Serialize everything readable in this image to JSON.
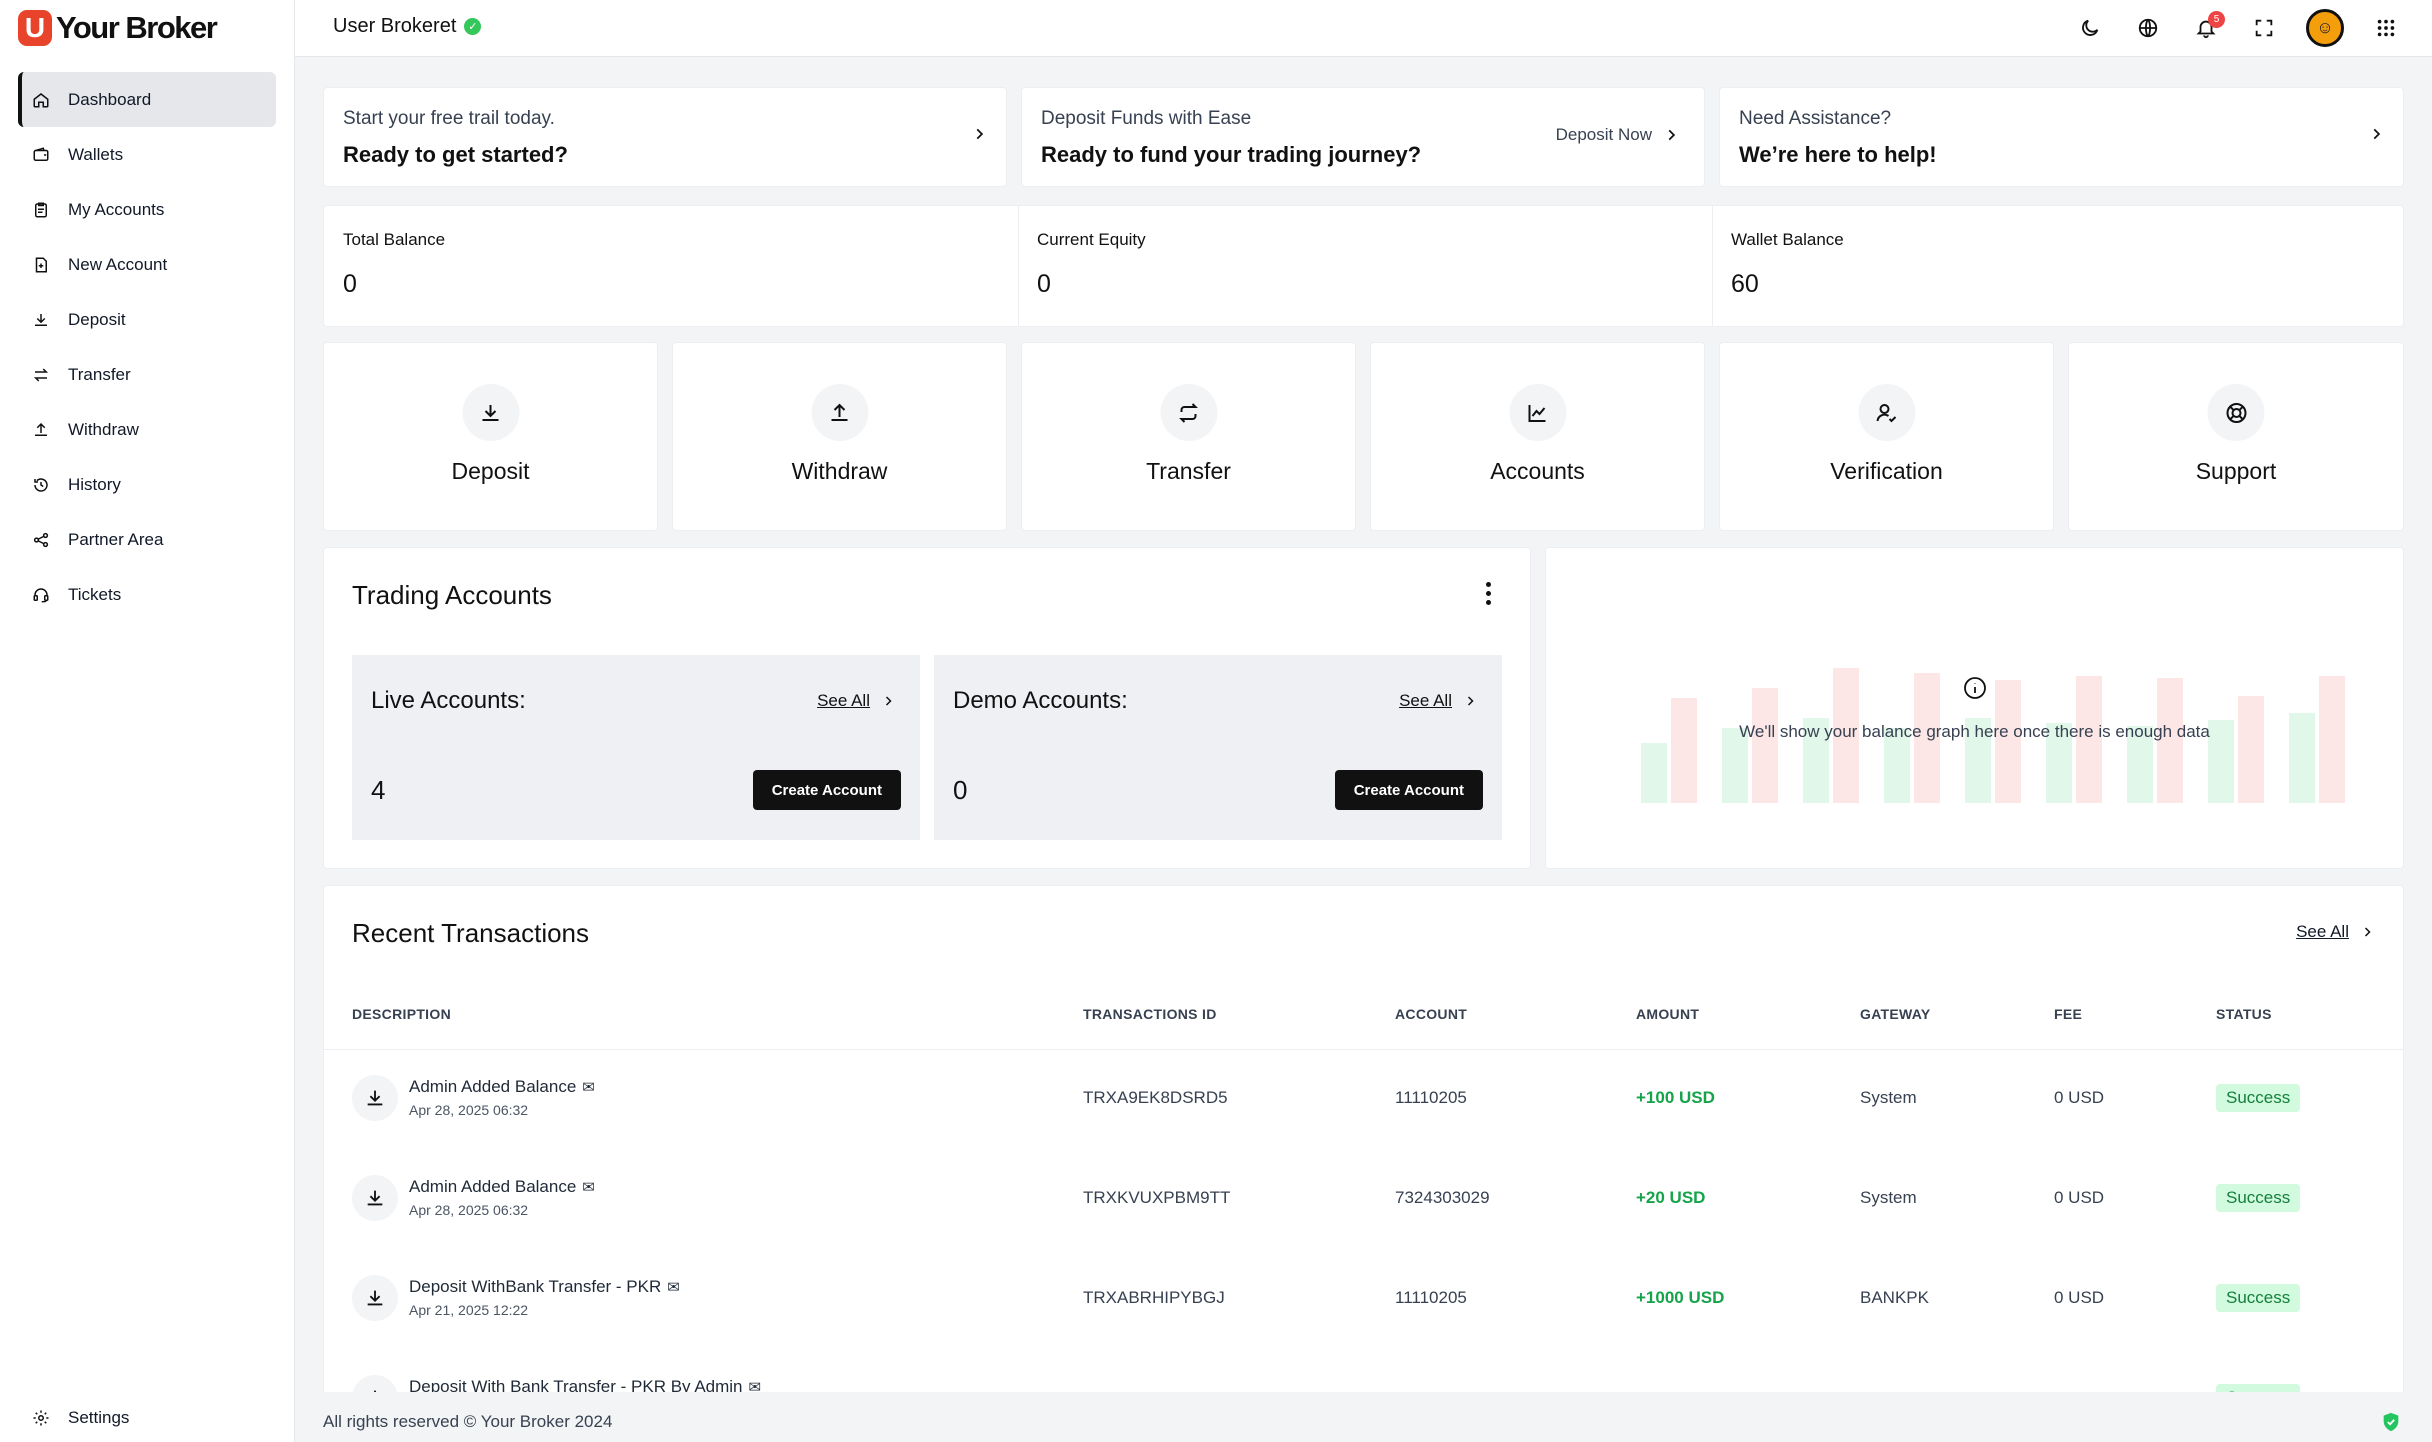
{
  "brand": {
    "mark": "U",
    "name": "Your Broker"
  },
  "sidebar": {
    "items": [
      {
        "label": "Dashboard",
        "icon": "home-icon",
        "active": true
      },
      {
        "label": "Wallets",
        "icon": "wallet-icon"
      },
      {
        "label": "My Accounts",
        "icon": "clipboard-icon"
      },
      {
        "label": "New Account",
        "icon": "file-plus-icon"
      },
      {
        "label": "Deposit",
        "icon": "download-icon"
      },
      {
        "label": "Transfer",
        "icon": "transfer-icon"
      },
      {
        "label": "Withdraw",
        "icon": "upload-icon"
      },
      {
        "label": "History",
        "icon": "history-icon"
      },
      {
        "label": "Partner Area",
        "icon": "share-icon"
      },
      {
        "label": "Tickets",
        "icon": "headset-icon"
      }
    ],
    "settings_label": "Settings"
  },
  "topbar": {
    "user_name": "User Brokeret",
    "notification_count": "5",
    "icons": [
      "moon-icon",
      "globe-icon",
      "bell-icon",
      "fullscreen-icon",
      "avatar",
      "apps-grid-icon"
    ]
  },
  "promos": [
    {
      "line1": "Start your free trail today.",
      "line2": "Ready to get started?"
    },
    {
      "line1": "Deposit Funds with Ease",
      "line2": "Ready to fund your trading journey?",
      "action": "Deposit Now"
    },
    {
      "line1": "Need Assistance?",
      "line2": "We’re here to help!"
    }
  ],
  "stats": [
    {
      "label": "Total Balance",
      "value": "0"
    },
    {
      "label": "Current Equity",
      "value": "0"
    },
    {
      "label": "Wallet Balance",
      "value": "60"
    }
  ],
  "actions": [
    {
      "label": "Deposit",
      "icon": "download-icon"
    },
    {
      "label": "Withdraw",
      "icon": "upload-icon"
    },
    {
      "label": "Transfer",
      "icon": "transfer-icon"
    },
    {
      "label": "Accounts",
      "icon": "chart-line-icon"
    },
    {
      "label": "Verification",
      "icon": "user-check-icon"
    },
    {
      "label": "Support",
      "icon": "lifebuoy-icon"
    }
  ],
  "trading": {
    "title": "Trading Accounts",
    "live": {
      "label": "Live Accounts:",
      "see_all": "See All",
      "count": "4",
      "button": "Create Account"
    },
    "demo": {
      "label": "Demo Accounts:",
      "see_all": "See All",
      "count": "0",
      "button": "Create Account"
    }
  },
  "balance_chart": {
    "empty_message": "We'll show your balance graph here once there is enough data"
  },
  "transactions": {
    "title": "Recent Transactions",
    "see_all": "See All",
    "columns": [
      "DESCRIPTION",
      "TRANSACTIONS ID",
      "ACCOUNT",
      "AMOUNT",
      "GATEWAY",
      "FEE",
      "STATUS"
    ],
    "rows": [
      {
        "description": "Admin Added Balance",
        "date": "Apr 28, 2025 06:32",
        "id": "TRXA9EK8DSRD5",
        "account": "11110205",
        "amount": "+100 USD",
        "gateway": "System",
        "fee": "0 USD",
        "status": "Success"
      },
      {
        "description": "Admin Added Balance",
        "date": "Apr 28, 2025 06:32",
        "id": "TRXKVUXPBM9TT",
        "account": "7324303029",
        "amount": "+20 USD",
        "gateway": "System",
        "fee": "0 USD",
        "status": "Success"
      },
      {
        "description": "Deposit WithBank Transfer - PKR",
        "date": "Apr 21, 2025 12:22",
        "id": "TRXABRHIPYBGJ",
        "account": "11110205",
        "amount": "+1000 USD",
        "gateway": "BANKPK",
        "fee": "0 USD",
        "status": "Success"
      },
      {
        "description": "Deposit With Bank Transfer - PKR By Admin",
        "date": "",
        "id": "",
        "account": "",
        "amount": "",
        "gateway": "",
        "fee": "",
        "status": "Success"
      }
    ]
  },
  "footer": {
    "text": "All rights reserved © Your Broker 2024"
  },
  "colors": {
    "brand": "#e8442c",
    "success_bg": "#d1fadf",
    "success_text": "#15803d",
    "amount": "#16a34a"
  }
}
